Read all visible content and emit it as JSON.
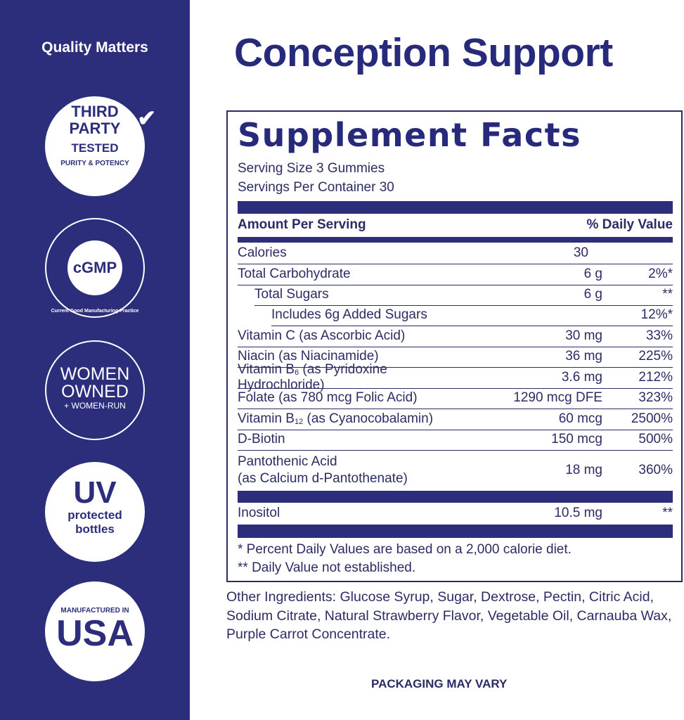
{
  "sidebar": {
    "heading": "Quality Matters",
    "badges": [
      {
        "name": "third-party-tested",
        "lines": [
          "THIRD",
          "PARTY",
          "TESTED",
          "PURITY & POTENCY"
        ]
      },
      {
        "name": "cgmp",
        "lines": [
          "cGMP",
          "Current Good Manufacturing Practice"
        ]
      },
      {
        "name": "women-owned",
        "lines": [
          "WOMEN",
          "OWNED",
          "+ WOMEN-RUN"
        ]
      },
      {
        "name": "uv-protected",
        "lines": [
          "UV",
          "protected",
          "bottles"
        ]
      },
      {
        "name": "made-in-usa",
        "lines": [
          "MANUFACTURED IN",
          "USA"
        ]
      }
    ]
  },
  "title": "Conception Support",
  "facts": {
    "heading": "Supplement Facts",
    "serving_size": "Serving Size 3 Gummies",
    "servings": "Servings Per Container 30",
    "col_amount": "Amount Per Serving",
    "col_dv": "% Daily Value",
    "rows": [
      {
        "name": "Calories",
        "amount": "30",
        "dv": ""
      },
      {
        "name": "Total Carbohydrate",
        "amount": "6 g",
        "dv": "2%*"
      },
      {
        "name": "Total Sugars",
        "amount": "6 g",
        "dv": "**"
      },
      {
        "name": "Includes 6g Added Sugars",
        "amount": "",
        "dv": "12%*"
      },
      {
        "name": "Vitamin C (as Ascorbic Acid)",
        "amount": "30 mg",
        "dv": "33%"
      },
      {
        "name": "Niacin (as Niacinamide)",
        "amount": "36 mg",
        "dv": "225%"
      },
      {
        "name": "Vitamin B6 (as Pyridoxine Hydrochloride)",
        "amount": "3.6 mg",
        "dv": "212%"
      },
      {
        "name": "Folate (as 780 mcg Folic Acid)",
        "amount": "1290 mcg DFE",
        "dv": "323%"
      },
      {
        "name": "Vitamin B12 (as Cyanocobalamin)",
        "amount": "60 mcg",
        "dv": "2500%"
      },
      {
        "name": "D-Biotin",
        "amount": "150 mcg",
        "dv": "500%"
      },
      {
        "name": "Pantothenic Acid (as Calcium d-Pantothenate)",
        "amount": "18 mg",
        "dv": "360%"
      },
      {
        "name": "Inositol",
        "amount": "10.5 mg",
        "dv": "**"
      }
    ],
    "footnote1": "* Percent Daily Values are based on a 2,000 calorie diet.",
    "footnote2": "** Daily Value not established."
  },
  "other_ingredients": "Other Ingredients: Glucose Syrup, Sugar, Dextrose, Pectin, Citric Acid, Sodium Citrate, Natural Strawberry Flavor, Vegetable Oil, Carnauba Wax, Purple Carrot Concentrate.",
  "packaging_note": "PACKAGING MAY VARY",
  "colors": {
    "navy": "#2c2e7c",
    "text": "#2b2c64"
  }
}
